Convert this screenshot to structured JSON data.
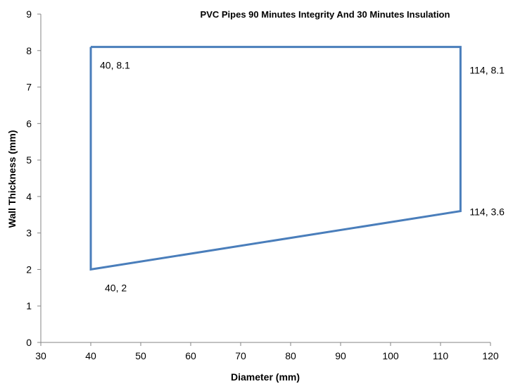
{
  "chart_data": {
    "type": "line",
    "title": "PVC Pipes 90 Minutes Integrity And 30 Minutes Insulation",
    "xlabel": "Diameter (mm)",
    "ylabel": "Wall Thickness (mm)",
    "xlim": [
      30,
      120
    ],
    "ylim": [
      0,
      9
    ],
    "x_ticks": [
      "30",
      "40",
      "50",
      "60",
      "70",
      "80",
      "90",
      "100",
      "110",
      "120"
    ],
    "y_ticks": [
      "0",
      "1",
      "2",
      "3",
      "4",
      "5",
      "6",
      "7",
      "8",
      "9"
    ],
    "grid": false,
    "legend": "none",
    "line_color": "#4a7ebb",
    "series": [
      {
        "x": [
          40,
          114,
          114,
          40,
          40
        ],
        "y": [
          8.1,
          8.1,
          3.6,
          2,
          8.1
        ]
      }
    ],
    "point_labels": [
      {
        "x": 40,
        "y": 8.1,
        "text": "40, 8.1"
      },
      {
        "x": 114,
        "y": 8.1,
        "text": "114, 8.1"
      },
      {
        "x": 114,
        "y": 3.6,
        "text": "114, 3.6"
      },
      {
        "x": 40,
        "y": 2,
        "text": "40, 2"
      }
    ]
  }
}
